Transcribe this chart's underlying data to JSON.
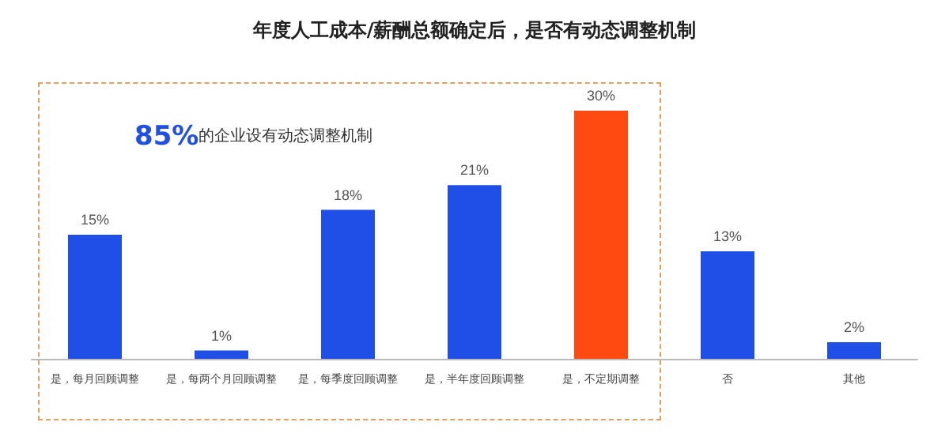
{
  "chart_data": {
    "type": "bar",
    "title": "年度人工成本/薪酬总额确定后，是否有动态调整机制",
    "categories": [
      "是，每月回顾调整",
      "是，每两个月回顾调整",
      "是，每季度回顾调整",
      "是，半年度回顾调整",
      "是，不定期调整",
      "否",
      "其他"
    ],
    "values": [
      15,
      1,
      18,
      21,
      30,
      13,
      2
    ],
    "colors": [
      "#1f4fe6",
      "#1f4fe6",
      "#1f4fe6",
      "#1f4fe6",
      "#ff4a12",
      "#1f4fe6",
      "#1f4fe6"
    ],
    "value_labels": [
      "15%",
      "1%",
      "18%",
      "21%",
      "30%",
      "13%",
      "2%"
    ],
    "annotations": [
      "85%的企业设有动态调整机制"
    ]
  }
}
